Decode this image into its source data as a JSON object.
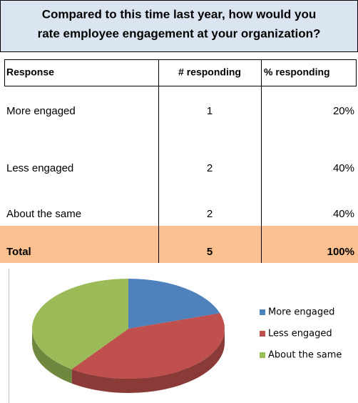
{
  "title": [
    "Compared to this time last year, how would you",
    "rate employee engagement at your organization?"
  ],
  "table": {
    "header": [
      "Response",
      "# responding",
      "% responding"
    ],
    "rows": [
      [
        "More engaged",
        "1",
        "20%"
      ],
      [
        "Less engaged",
        "2",
        "40%"
      ],
      [
        "About the same",
        "2",
        "40%"
      ]
    ],
    "total": [
      "Total",
      "5",
      "100%"
    ]
  },
  "chart_data": {
    "type": "pie",
    "categories": [
      "More engaged",
      "Less engaged",
      "About the same"
    ],
    "values": [
      20,
      40,
      40
    ],
    "colors": [
      "#4f81bd",
      "#c0504d",
      "#9bbb59"
    ],
    "legend": "right"
  }
}
